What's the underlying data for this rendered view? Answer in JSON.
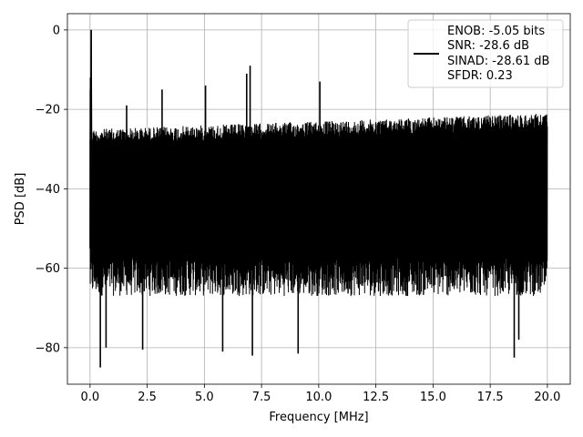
{
  "chart_data": {
    "type": "line",
    "title": "",
    "xlabel": "Frequency [MHz]",
    "ylabel": "PSD [dB]",
    "xlim": [
      -0.99,
      21.0
    ],
    "ylim": [
      -89.2,
      4.1
    ],
    "xticks": [
      0.0,
      2.5,
      5.0,
      7.5,
      10.0,
      12.5,
      15.0,
      17.5,
      20.0
    ],
    "xtick_labels": [
      "0.0",
      "2.5",
      "5.0",
      "7.5",
      "10.0",
      "12.5",
      "15.0",
      "17.5",
      "20.0"
    ],
    "yticks": [
      0,
      -20,
      -40,
      -60,
      -80
    ],
    "ytick_labels": [
      "0",
      "−20",
      "−40",
      "−60",
      "−80"
    ],
    "grid": true,
    "series": [
      {
        "color": "#000000",
        "x_range": [
          0.0,
          20.0
        ],
        "noise_top_db_start": -25,
        "noise_top_db_end": -21,
        "noise_bottom_db": -62,
        "peaks": [
          {
            "x": 0.05,
            "y": 0.0
          },
          {
            "x": 0.02,
            "y": -12.0
          },
          {
            "x": 1.6,
            "y": -19.0
          },
          {
            "x": 3.15,
            "y": -15.0
          },
          {
            "x": 5.05,
            "y": -14.0
          },
          {
            "x": 6.85,
            "y": -11.0
          },
          {
            "x": 7.0,
            "y": -9.0
          },
          {
            "x": 10.05,
            "y": -13.0
          }
        ],
        "dips": [
          {
            "x": 0.45,
            "y": -85.0
          },
          {
            "x": 0.7,
            "y": -80.0
          },
          {
            "x": 2.3,
            "y": -80.5
          },
          {
            "x": 5.8,
            "y": -81.0
          },
          {
            "x": 7.1,
            "y": -82.0
          },
          {
            "x": 9.1,
            "y": -81.5
          },
          {
            "x": 18.55,
            "y": -82.5
          },
          {
            "x": 18.75,
            "y": -78.0
          }
        ]
      }
    ],
    "legend": {
      "location": "upper-right",
      "entries": [
        "ENOB: -5.05 bits",
        "SNR: -28.6 dB",
        "SINAD: -28.61 dB",
        "SFDR: 0.23"
      ]
    }
  }
}
